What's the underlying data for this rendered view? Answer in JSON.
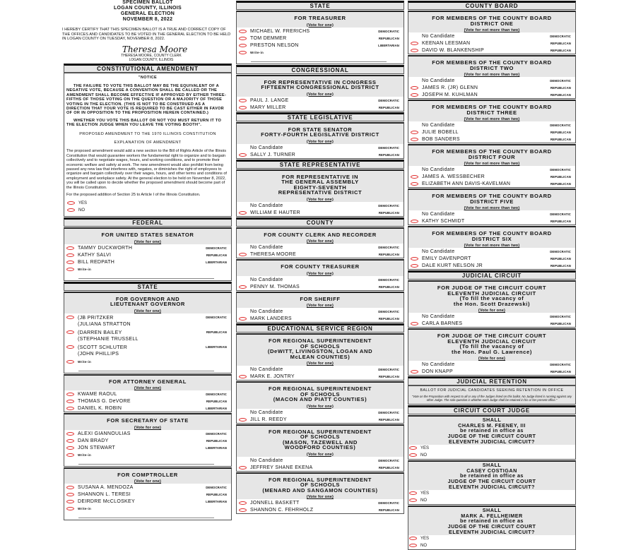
{
  "header": {
    "title_lines": [
      "SPECIMEN BALLOT",
      "LOGAN COUNTY, ILLINOIS",
      "GENERAL ELECTION",
      "NOVEMBER 8, 2022"
    ],
    "certify": "I HEREBY CERTIFY THAT THIS SPECIMEN BALLOT IS A TRUE AND CORRECT COPY OF THE OFFICES AND CANDIDATES TO BE VOTED IN THE GENERAL ELECTION TO BE HELD IN LOGAN COUNTY ON TUESDAY, NOVEMBER 8, 2022.",
    "signature": "Theresa Moore",
    "clerk_lines": [
      "THERESA MOORE, COUNTY CLERK",
      "LOGAN COUNTY, ILLINOIS"
    ]
  },
  "colors": {
    "oval": "#e03030",
    "heading_bg": "#e6e6e6"
  },
  "columns": [
    {
      "blocks": [
        {
          "type": "section",
          "label": "CONSTITUTIONAL AMENDMENT"
        },
        {
          "type": "amendment",
          "notice": "\"NOTICE",
          "notice_text": "THE FAILURE TO VOTE THIS BALLOT MAY BE THE EQUIVALENT OF A NEGATIVE VOTE, BECAUSE A CONVENTION SHALL BE CALLED OR THE AMENDMENT SHALL BECOME EFFECTIVE IF APPROVED BY EITHER THREE-FIFTHS OF THOSE VOTING ON THE QUESTION OR A MAJORITY OF THOSE VOTING IN THE ELECTION. (THIS IS NOT TO BE CONSTRUED AS A DIRECTION THAT YOUR VOTE IS REQUIRED TO BE CAST EITHER IN FAVOR OF OR IN OPPOSITION TO THE PROPOSITION HEREIN CONTAINED.)",
          "whether_text": "WHETHER YOU VOTE THIS BALLOT OR NOT YOU MUST RETURN IT TO THE ELECTION JUDGE WHEN YOU LEAVE THE VOTING BOOTH\".",
          "proposed_heading": "PROPOSED AMENDMENT TO THE 1970 ILLINOIS CONSTITUTION",
          "explanation_heading": "EXPLANATION OF AMENDMENT",
          "explanation": "The proposed amendment would add a new section to the Bill of Rights Article of the Illinois Constitution that would guarantee workers the fundamental right to organize and to bargain collectively and to negotiate wages, hours, and working conditions, and to promote their economic welfare and safety at work. The new amendment would also prohibit from being passed any new law that interferes with, negates, or diminishes the right of employees to organize and bargain collectively over their wages, hours, and other terms and conditions of employment and workplace safety. At the general election to be held on November 8, 2022, you will be called upon to decide whether the proposed amendment should become part of the Illinois Constitution.",
          "question": "For the proposed addition of Section 25 to Article I of the Illinois Constitution.",
          "options": [
            "YES",
            "NO"
          ]
        },
        {
          "type": "section",
          "label": "FEDERAL"
        },
        {
          "type": "contest",
          "title": [
            "FOR UNITED STATES SENATOR"
          ],
          "vote_for": "(Vote for one)",
          "writein": "Write-in",
          "candidates": [
            {
              "name": [
                "TAMMY DUCKWORTH"
              ],
              "party": "DEMOCRATIC"
            },
            {
              "name": [
                "KATHY SALVI"
              ],
              "party": "REPUBLICAN"
            },
            {
              "name": [
                "BILL REDPATH"
              ],
              "party": "LIBERTARIAN"
            }
          ]
        },
        {
          "type": "section",
          "label": "STATE"
        },
        {
          "type": "contest",
          "title": [
            "FOR GOVERNOR AND",
            "LIEUTENANT GOVERNOR"
          ],
          "vote_for": "(Vote for one)",
          "writein": "Write-in",
          "candidates": [
            {
              "name": [
                "(JB PRITZKER",
                "(JULIANA STRATTON"
              ],
              "party": "DEMOCRATIC"
            },
            {
              "name": [
                "(DARREN BAILEY",
                "(STEPHANIE TRUSSELL"
              ],
              "party": "REPUBLICAN"
            },
            {
              "name": [
                "(SCOTT SCHLUTER",
                "(JOHN PHILLIPS"
              ],
              "party": "LIBERTARIAN"
            }
          ]
        },
        {
          "type": "contest",
          "title": [
            "FOR ATTORNEY GENERAL"
          ],
          "vote_for": "(Vote for one)",
          "candidates": [
            {
              "name": [
                "KWAME RAOUL"
              ],
              "party": "DEMOCRATIC"
            },
            {
              "name": [
                "THOMAS G. DeVORE"
              ],
              "party": "REPUBLICAN"
            },
            {
              "name": [
                "DANIEL K. ROBIN"
              ],
              "party": "LIBERTARIAN"
            }
          ]
        },
        {
          "type": "contest",
          "title": [
            "FOR SECRETARY OF STATE"
          ],
          "vote_for": "(Vote for one)",
          "writein": "Write-in",
          "candidates": [
            {
              "name": [
                "ALEXI GIANNOULIAS"
              ],
              "party": "DEMOCRATIC"
            },
            {
              "name": [
                "DAN BRADY"
              ],
              "party": "REPUBLICAN"
            },
            {
              "name": [
                "JON STEWART"
              ],
              "party": "LIBERTARIAN"
            }
          ]
        },
        {
          "type": "contest",
          "title": [
            "FOR COMPTROLLER"
          ],
          "vote_for": "(Vote for one)",
          "writein": "Write-in",
          "candidates": [
            {
              "name": [
                "SUSANA A. MENDOZA"
              ],
              "party": "DEMOCRATIC"
            },
            {
              "name": [
                "SHANNON L. TERESI"
              ],
              "party": "REPUBLICAN"
            },
            {
              "name": [
                "DEIRDRE McCLOSKEY"
              ],
              "party": "LIBERTARIAN"
            }
          ]
        }
      ]
    },
    {
      "blocks": [
        {
          "type": "section",
          "label": "STATE"
        },
        {
          "type": "contest",
          "title": [
            "FOR TREASURER"
          ],
          "vote_for": "(Vote for one)",
          "writein": "Write-in",
          "candidates": [
            {
              "name": [
                "MICHAEL W. FRERICHS"
              ],
              "party": "DEMOCRATIC"
            },
            {
              "name": [
                "TOM DEMMER"
              ],
              "party": "REPUBLICAN"
            },
            {
              "name": [
                "PRESTON NELSON"
              ],
              "party": "LIBERTARIAN"
            }
          ]
        },
        {
          "type": "section",
          "label": "CONGRESSIONAL"
        },
        {
          "type": "contest",
          "title": [
            "FOR REPRESENTATIVE IN CONGRESS",
            "FIFTEENTH CONGRESSIONAL DISTRICT"
          ],
          "vote_for": "(Vote for one)",
          "candidates": [
            {
              "name": [
                "PAUL J. LANGE"
              ],
              "party": "DEMOCRATIC"
            },
            {
              "name": [
                "MARY MILLER"
              ],
              "party": "REPUBLICAN"
            }
          ]
        },
        {
          "type": "section",
          "label": "STATE LEGISLATIVE"
        },
        {
          "type": "contest",
          "title": [
            "FOR STATE SENATOR",
            "FORTY-FOURTH LEGISLATIVE DISTRICT"
          ],
          "vote_for": "(Vote for one)",
          "candidates": [
            {
              "name": [
                "No Candidate"
              ],
              "party": "DEMOCRATIC",
              "none": true
            },
            {
              "name": [
                "SALLY J. TURNER"
              ],
              "party": "REPUBLICAN"
            }
          ]
        },
        {
          "type": "section",
          "label": "STATE REPRESENTATIVE"
        },
        {
          "type": "contest",
          "title": [
            "FOR REPRESENTATIVE IN",
            "THE GENERAL ASSEMBLY",
            "EIGHTY-SEVENTH",
            "REPRESENTATIVE DISTRICT"
          ],
          "vote_for": "(Vote for one)",
          "candidates": [
            {
              "name": [
                "No Candidate"
              ],
              "party": "DEMOCRATIC",
              "none": true
            },
            {
              "name": [
                "WILLIAM E HAUTER"
              ],
              "party": "REPUBLICAN"
            }
          ]
        },
        {
          "type": "section",
          "label": "COUNTY"
        },
        {
          "type": "contest",
          "title": [
            "FOR COUNTY CLERK AND RECORDER"
          ],
          "vote_for": "(Vote for one)",
          "candidates": [
            {
              "name": [
                "No Candidate"
              ],
              "party": "DEMOCRATIC",
              "none": true
            },
            {
              "name": [
                "THERESA MOORE"
              ],
              "party": "REPUBLICAN"
            }
          ]
        },
        {
          "type": "contest",
          "title": [
            "FOR COUNTY TREASURER"
          ],
          "vote_for": "(Vote for one)",
          "candidates": [
            {
              "name": [
                "No Candidate"
              ],
              "party": "DEMOCRATIC",
              "none": true
            },
            {
              "name": [
                "PENNY M. THOMAS"
              ],
              "party": "REPUBLICAN"
            }
          ]
        },
        {
          "type": "contest",
          "title": [
            "FOR SHERIFF"
          ],
          "vote_for": "(Vote for one)",
          "candidates": [
            {
              "name": [
                "No Candidate"
              ],
              "party": "DEMOCRATIC",
              "none": true
            },
            {
              "name": [
                "MARK LANDERS"
              ],
              "party": "REPUBLICAN"
            }
          ]
        },
        {
          "type": "section",
          "label": "EDUCATIONAL SERVICE REGION"
        },
        {
          "type": "contest",
          "title": [
            "FOR REGIONAL SUPERINTENDENT",
            "OF SCHOOLS",
            "(DeWITT, LIVINGSTON, LOGAN AND",
            "McLEAN COUNTIES)"
          ],
          "vote_for": "(Vote for one)",
          "candidates": [
            {
              "name": [
                "No Candidate"
              ],
              "party": "DEMOCRATIC",
              "none": true
            },
            {
              "name": [
                "MARK E. JONTRY"
              ],
              "party": "REPUBLICAN"
            }
          ]
        },
        {
          "type": "contest",
          "title": [
            "FOR REGIONAL SUPERINTENDENT",
            "OF SCHOOLS",
            "(MACON AND PIATT COUNTIES)"
          ],
          "vote_for": "(Vote for one)",
          "candidates": [
            {
              "name": [
                "No Candidate"
              ],
              "party": "DEMOCRATIC",
              "none": true
            },
            {
              "name": [
                "JILL R. REEDY"
              ],
              "party": "REPUBLICAN"
            }
          ]
        },
        {
          "type": "contest",
          "title": [
            "FOR REGIONAL SUPERINTENDENT",
            "OF SCHOOLS",
            "(MASON, TAZEWELL AND",
            "WOODFORD COUNTIES)"
          ],
          "vote_for": "(Vote for one)",
          "candidates": [
            {
              "name": [
                "No Candidate"
              ],
              "party": "DEMOCRATIC",
              "none": true
            },
            {
              "name": [
                "JEFFREY SHANE EKENA"
              ],
              "party": "REPUBLICAN"
            }
          ]
        },
        {
          "type": "contest",
          "title": [
            "FOR REGIONAL SUPERINTENDENT",
            "OF SCHOOLS",
            "(MENARD AND SANGAMON COUNTIES)"
          ],
          "vote_for": "(Vote for one)",
          "candidates": [
            {
              "name": [
                "JONNELL BASKETT"
              ],
              "party": "DEMOCRATIC"
            },
            {
              "name": [
                "SHANNON C. FEHRHOLZ"
              ],
              "party": "REPUBLICAN"
            }
          ]
        }
      ]
    },
    {
      "blocks": [
        {
          "type": "section",
          "label": "COUNTY BOARD"
        },
        {
          "type": "contest",
          "title": [
            "FOR MEMBERS OF THE COUNTY BOARD",
            "DISTRICT ONE"
          ],
          "vote_for": "(Vote for not more than two)",
          "candidates": [
            {
              "name": [
                "No Candidate"
              ],
              "party": "DEMOCRATIC",
              "none": true
            },
            {
              "name": [
                "KEENAN LEESMAN"
              ],
              "party": "REPUBLICAN"
            },
            {
              "name": [
                "DAVID W. BLANKENSHIP"
              ],
              "party": "REPUBLICAN"
            }
          ]
        },
        {
          "type": "contest",
          "title": [
            "FOR MEMBERS OF THE COUNTY BOARD",
            "DISTRICT TWO"
          ],
          "vote_for": "(Vote for not more than two)",
          "candidates": [
            {
              "name": [
                "No Candidate"
              ],
              "party": "DEMOCRATIC",
              "none": true
            },
            {
              "name": [
                "JAMES R. (JR) GLENN"
              ],
              "party": "REPUBLICAN"
            },
            {
              "name": [
                "JOSEPH M. KUHLMAN"
              ],
              "party": "REPUBLICAN"
            }
          ]
        },
        {
          "type": "contest",
          "title": [
            "FOR MEMBERS OF THE COUNTY BOARD",
            "DISTRICT THREE"
          ],
          "vote_for": "(Vote for not more than two)",
          "candidates": [
            {
              "name": [
                "No Candidate"
              ],
              "party": "DEMOCRATIC",
              "none": true
            },
            {
              "name": [
                "JULIE BOBELL"
              ],
              "party": "REPUBLICAN"
            },
            {
              "name": [
                "BOB SANDERS"
              ],
              "party": "REPUBLICAN"
            }
          ]
        },
        {
          "type": "contest",
          "title": [
            "FOR MEMBERS OF THE COUNTY BOARD",
            "DISTRICT FOUR"
          ],
          "vote_for": "(Vote for not more than two)",
          "candidates": [
            {
              "name": [
                "No Candidate"
              ],
              "party": "DEMOCRATIC",
              "none": true
            },
            {
              "name": [
                "JAMES A. WESSBECHER"
              ],
              "party": "REPUBLICAN"
            },
            {
              "name": [
                "ELIZABETH ANN DAVIS-KAVELMAN"
              ],
              "party": "REPUBLICAN"
            }
          ]
        },
        {
          "type": "contest",
          "title": [
            "FOR MEMBERS OF THE COUNTY BOARD",
            "DISTRICT FIVE"
          ],
          "vote_for": "(Vote for not more than two)",
          "candidates": [
            {
              "name": [
                "No Candidate"
              ],
              "party": "DEMOCRATIC",
              "none": true
            },
            {
              "name": [
                "KATHY SCHMIDT"
              ],
              "party": "REPUBLICAN"
            }
          ]
        },
        {
          "type": "contest",
          "title": [
            "FOR MEMBERS OF THE COUNTY BOARD",
            "DISTRICT SIX"
          ],
          "vote_for": "(Vote for not more than two)",
          "candidates": [
            {
              "name": [
                "No Candidate"
              ],
              "party": "DEMOCRATIC",
              "none": true
            },
            {
              "name": [
                "EMILY DAVENPORT"
              ],
              "party": "REPUBLICAN"
            },
            {
              "name": [
                "DALE KURT NELSON JR"
              ],
              "party": "REPUBLICAN"
            }
          ]
        },
        {
          "type": "section",
          "label": "JUDICIAL CIRCUIT"
        },
        {
          "type": "contest",
          "title": [
            "FOR JUDGE OF THE CIRCUIT COURT",
            "ELEVENTH JUDICIAL CIRCUIT",
            "(To fill the vacancy of",
            "the Hon. Scott Drazewski)"
          ],
          "vote_for": "(Vote for one)",
          "candidates": [
            {
              "name": [
                "No Candidate"
              ],
              "party": "DEMOCRATIC",
              "none": true
            },
            {
              "name": [
                "CARLA BARNES"
              ],
              "party": "REPUBLICAN"
            }
          ]
        },
        {
          "type": "contest",
          "title": [
            "FOR JUDGE OF THE CIRCUIT COURT",
            "ELEVENTH JUDICIAL CIRCUIT",
            "(To fill the vacancy of",
            "the Hon. Paul G. Lawrence)"
          ],
          "vote_for": "(Vote for one)",
          "candidates": [
            {
              "name": [
                "No Candidate"
              ],
              "party": "DEMOCRATIC",
              "none": true
            },
            {
              "name": [
                "DON KNAPP"
              ],
              "party": "REPUBLICAN"
            }
          ]
        },
        {
          "type": "section",
          "label": "JUDICIAL RETENTION"
        },
        {
          "type": "intro",
          "text": "BALLOT FOR JUDICIAL CANDIDATES SEEKING RETENTION IN OFFICE",
          "note": "\"Vote on the Proposition with respect to all or any of the Judges listed on this ballot. No Judge listed is running against any other Judge. The sole question is whether each Judge shall be retained in his or her present office.\""
        },
        {
          "type": "section",
          "label": "CIRCUIT COURT JUDGE"
        },
        {
          "type": "retention",
          "lines": [
            "SHALL",
            "CHARLES M. FEENEY, III",
            "be retained in office as",
            "JUDGE OF THE CIRCUIT COURT",
            "ELEVENTH JUDICIAL CIRCUIT?"
          ],
          "options": [
            "YES",
            "NO"
          ]
        },
        {
          "type": "retention",
          "lines": [
            "SHALL",
            "CASEY COSTIGAN",
            "be retained in office as",
            "JUDGE OF THE CIRCUIT COURT",
            "ELEVENTH JUDICIAL CIRCUIT?"
          ],
          "options": [
            "YES",
            "NO"
          ]
        },
        {
          "type": "retention",
          "lines": [
            "SHALL",
            "MARK A. FELLHEIMER",
            "be retained in office as",
            "JUDGE OF THE CIRCUIT COURT",
            "ELEVENTH JUDICIAL CIRCUIT?"
          ],
          "options": [
            "YES",
            "NO"
          ]
        }
      ]
    }
  ]
}
